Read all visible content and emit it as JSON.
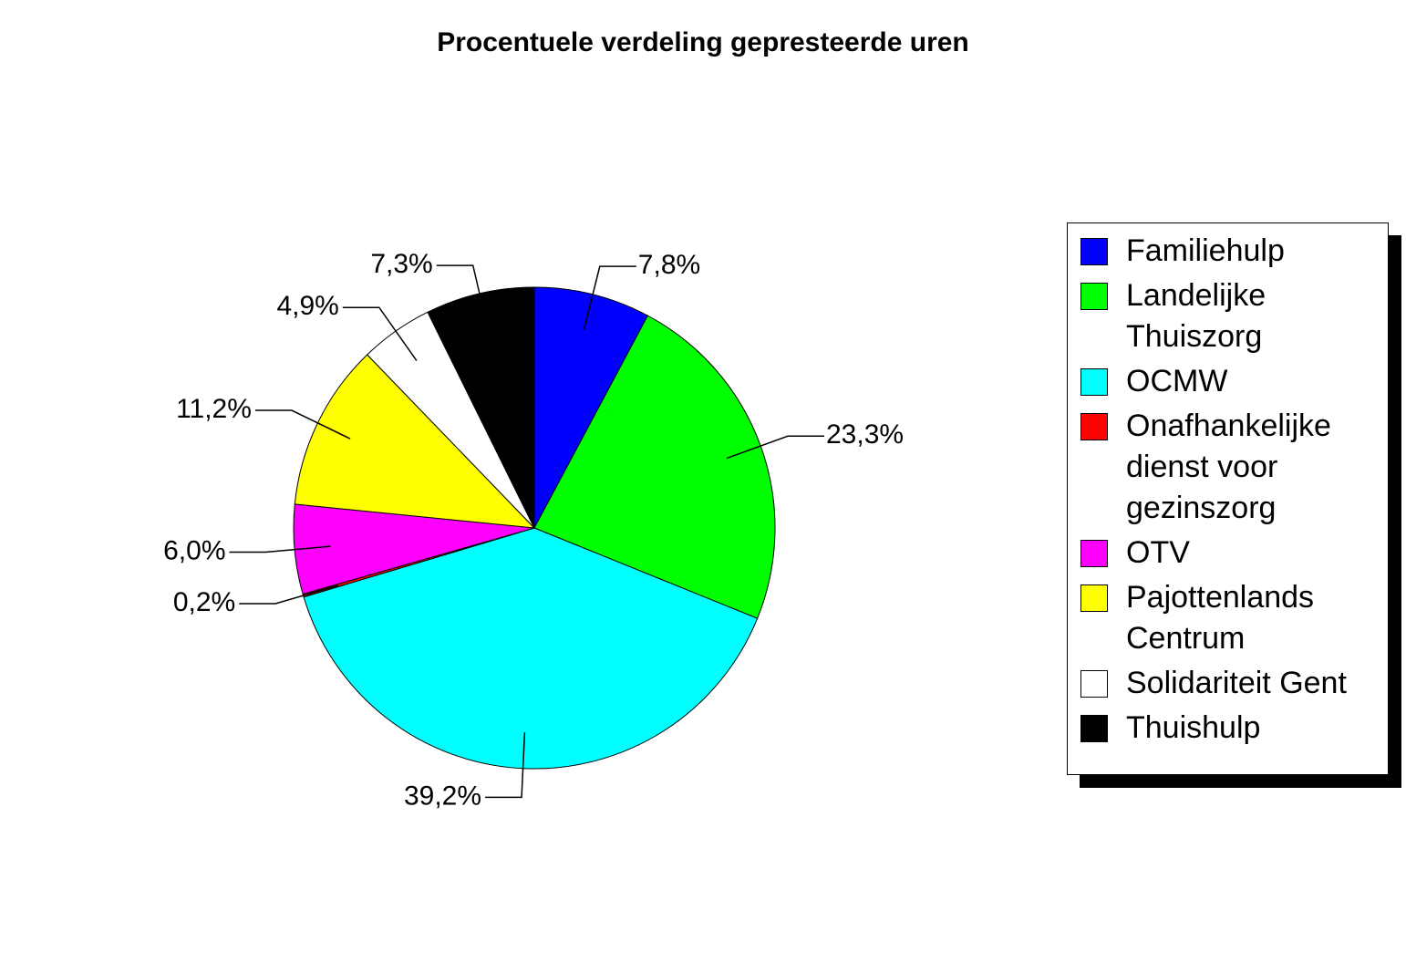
{
  "chart_data": {
    "type": "pie",
    "title": "Procentuele verdeling gepresteerde uren",
    "categories": [
      "Familiehulp",
      "Landelijke Thuiszorg",
      "OCMW",
      "Onafhankelijke dienst voor gezinszorg",
      "OTV",
      "Pajottenlands Centrum",
      "Solidariteit Gent",
      "Thuishulp"
    ],
    "values": [
      7.8,
      23.3,
      39.2,
      0.2,
      6.0,
      11.2,
      4.9,
      7.3
    ],
    "value_labels": [
      "7,8%",
      "23,3%",
      "39,2%",
      "0,2%",
      "6,0%",
      "11,2%",
      "4,9%",
      "7,3%"
    ],
    "colors": [
      "#0000ff",
      "#00ff00",
      "#00ffff",
      "#ff0000",
      "#ff00ff",
      "#ffff00",
      "#ffffff",
      "#000000"
    ],
    "legend": "right"
  }
}
